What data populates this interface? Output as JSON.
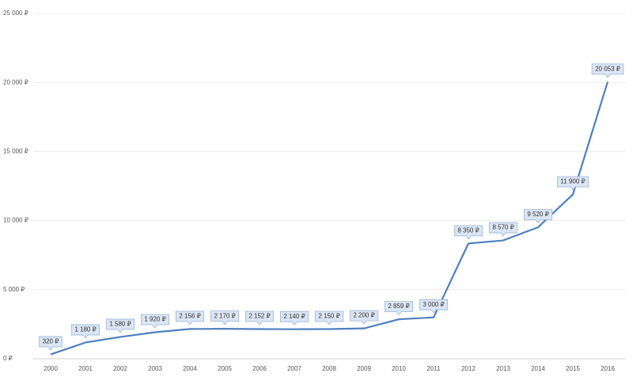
{
  "chart_data": {
    "type": "line",
    "categories": [
      "2000",
      "2001",
      "2002",
      "2003",
      "2004",
      "2005",
      "2006",
      "2007",
      "2008",
      "2009",
      "2010",
      "2011",
      "2012",
      "2013",
      "2014",
      "2015",
      "2016"
    ],
    "values": [
      320,
      1180,
      1580,
      1920,
      2156,
      2170,
      2152,
      2140,
      2150,
      2200,
      2859,
      3000,
      8350,
      8570,
      9520,
      11900,
      20053
    ],
    "value_labels": [
      "320 ₽",
      "1 180 ₽",
      "1 580 ₽",
      "1 920 ₽",
      "2 156 ₽",
      "2 170 ₽",
      "2 152 ₽",
      "2 140 ₽",
      "2 150 ₽",
      "2 200 ₽",
      "2 859 ₽",
      "3 000 ₽",
      "8 350 ₽",
      "8 570 ₽",
      "9 520 ₽",
      "11 900 ₽",
      "20 053 ₽"
    ],
    "color": "#4f7fbf",
    "ylim": [
      0,
      25000
    ],
    "yticks": [
      {
        "value": 0,
        "label": "0 ₽"
      },
      {
        "value": 5000,
        "label": "5 000 ₽"
      },
      {
        "value": 10000,
        "label": "10 000 ₽"
      },
      {
        "value": 15000,
        "label": "15 000 ₽"
      },
      {
        "value": 20000,
        "label": "20 000 ₽"
      },
      {
        "value": 25000,
        "label": "25 000 ₽"
      }
    ],
    "grid": true
  }
}
